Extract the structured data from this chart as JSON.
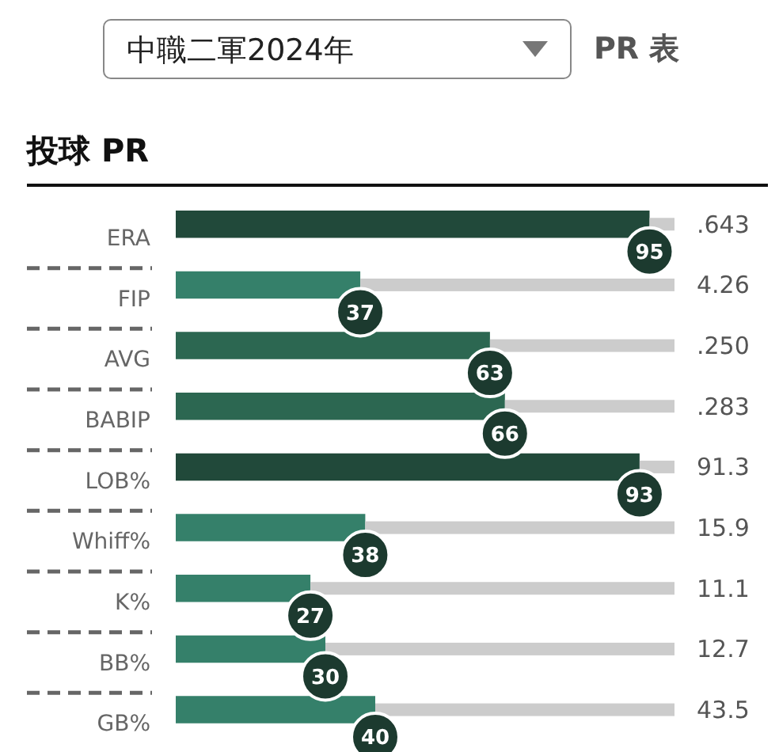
{
  "chart_data": {
    "type": "bar",
    "orientation": "horizontal",
    "stacked": true,
    "title": "投球 PR",
    "categories": [
      "ERA",
      "FIP",
      "AVG",
      "BABIP",
      "LOB%",
      "Whiff%",
      "K%",
      "BB%",
      "GB%"
    ],
    "series": [
      {
        "values": [
          95,
          37,
          63,
          66,
          93,
          38,
          27,
          30,
          40
        ],
        "colors": [
          "#21493a",
          "#35806a",
          "#2c6751",
          "#2c6751",
          "#21493a",
          "#35806a",
          "#35806a",
          "#35806a",
          "#35806a"
        ],
        "value_labels": [
          "95",
          "37",
          "63",
          "66",
          "93",
          "38",
          "27",
          "30",
          "40"
        ]
      },
      {
        "values": [
          5,
          63,
          37,
          34,
          7,
          62,
          73,
          70,
          60
        ],
        "color": "#cccccc"
      }
    ],
    "xlim": [
      0,
      100
    ],
    "annotations": [
      "中職二軍2024年",
      "PR 表",
      ".643",
      "4.26",
      ".250",
      ".283",
      "91.3",
      "15.9",
      "11.1",
      "12.7",
      "43.5"
    ]
  }
}
